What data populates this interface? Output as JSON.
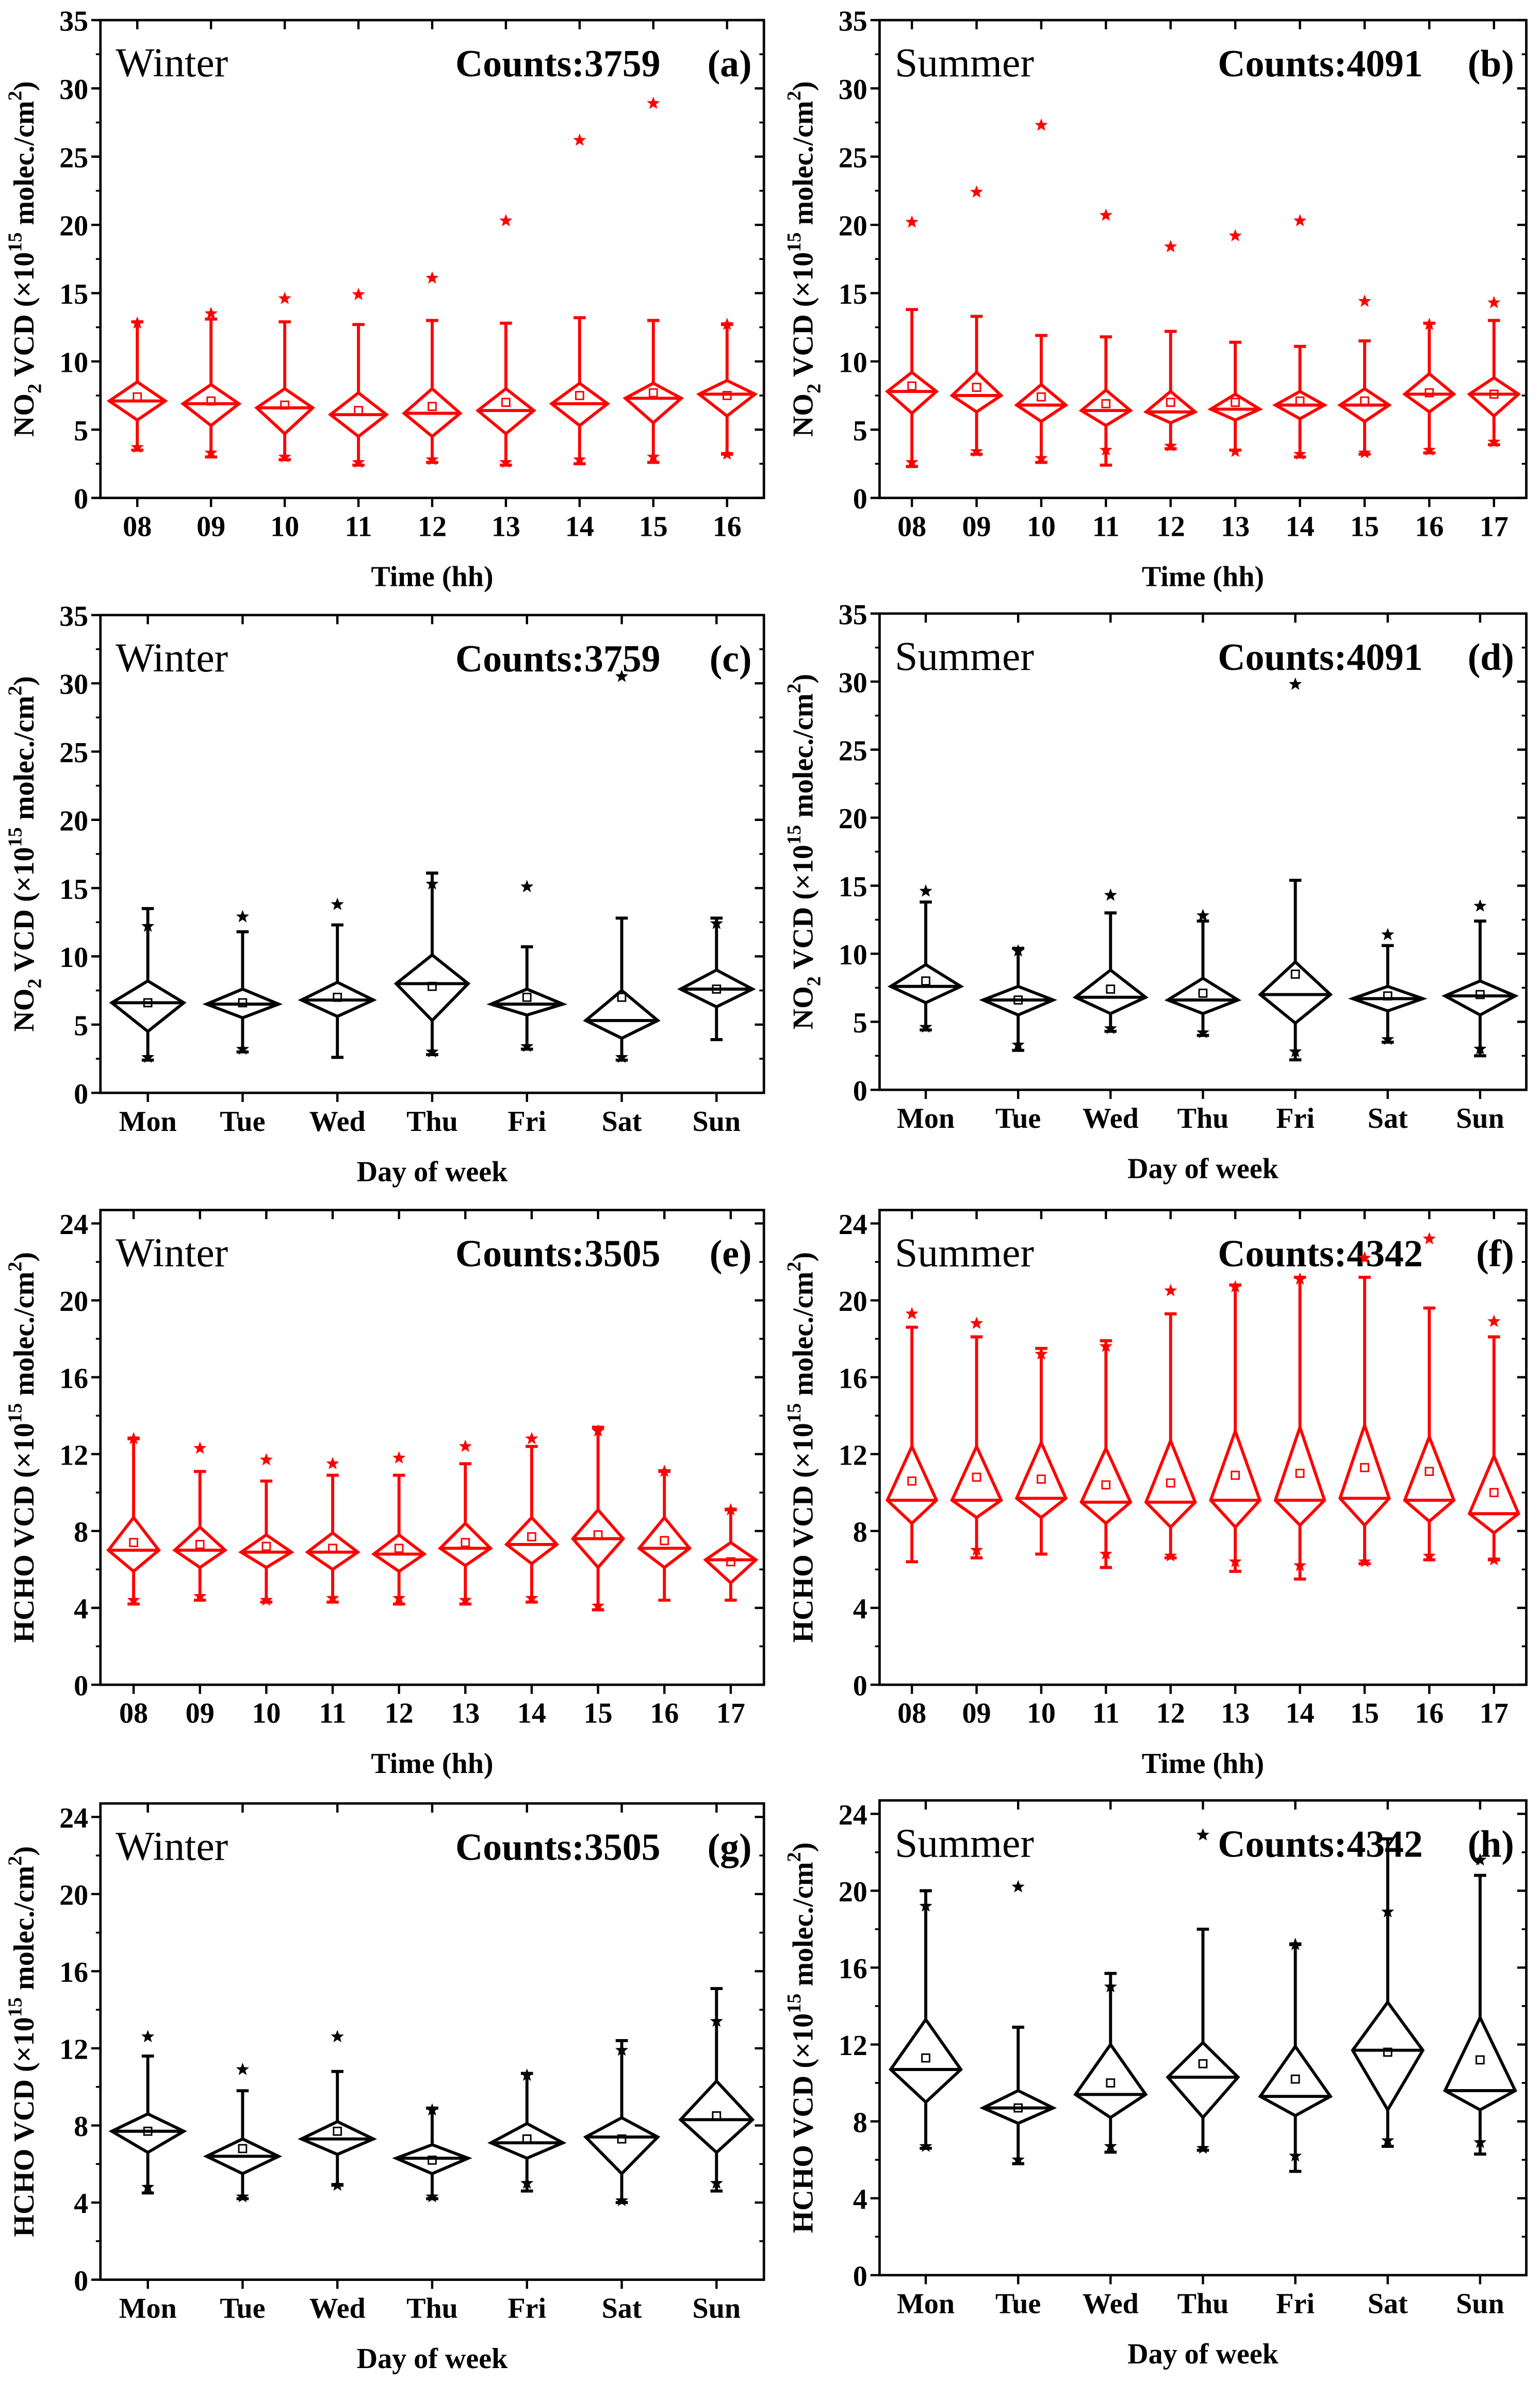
{
  "axis_text": {
    "no2_ylabel": [
      "NO",
      "2",
      " VCD (×10",
      "15",
      " molec./cm",
      "2",
      ")"
    ],
    "hcho_ylabel": [
      "HCHO VCD (×10",
      "15",
      " molec./cm",
      "2",
      ")"
    ]
  },
  "colors": {
    "red": "#ff0000",
    "black": "#000000"
  },
  "chart_data": [
    {
      "type": "box",
      "panel": "(a)",
      "season": "Winter",
      "counts": "Counts:3759",
      "ylabel_key": "no2_ylabel",
      "xlabel": "Time (hh)",
      "color": "#ff0000",
      "ylim": [
        0,
        35
      ],
      "yticks": [
        0,
        5,
        10,
        15,
        20,
        25,
        30,
        35
      ],
      "categories": [
        "08",
        "09",
        "10",
        "11",
        "12",
        "13",
        "14",
        "15",
        "16"
      ],
      "boxes": [
        {
          "median": 7.1,
          "q1": 5.7,
          "q3": 8.5,
          "low": 3.5,
          "high": 12.9,
          "mean": 7.4,
          "outliers": [
            12.8,
            3.7
          ]
        },
        {
          "median": 6.9,
          "q1": 5.3,
          "q3": 8.3,
          "low": 3.0,
          "high": 13.1,
          "mean": 7.1,
          "outliers": [
            13.5,
            3.3
          ]
        },
        {
          "median": 6.6,
          "q1": 4.7,
          "q3": 8.0,
          "low": 2.8,
          "high": 12.9,
          "mean": 6.8,
          "outliers": [
            14.6,
            3.0
          ]
        },
        {
          "median": 6.1,
          "q1": 4.5,
          "q3": 7.7,
          "low": 2.4,
          "high": 12.7,
          "mean": 6.4,
          "outliers": [
            14.9,
            2.6
          ]
        },
        {
          "median": 6.2,
          "q1": 4.5,
          "q3": 8.0,
          "low": 2.6,
          "high": 13.0,
          "mean": 6.7,
          "outliers": [
            16.1,
            2.8
          ]
        },
        {
          "median": 6.4,
          "q1": 4.7,
          "q3": 8.0,
          "low": 2.4,
          "high": 12.8,
          "mean": 7.0,
          "outliers": [
            20.3,
            2.6
          ]
        },
        {
          "median": 6.9,
          "q1": 5.3,
          "q3": 8.4,
          "low": 2.5,
          "high": 13.2,
          "mean": 7.5,
          "outliers": [
            26.2,
            2.8
          ]
        },
        {
          "median": 7.3,
          "q1": 5.5,
          "q3": 8.4,
          "low": 2.6,
          "high": 13.0,
          "mean": 7.7,
          "outliers": [
            28.9,
            3.0
          ]
        },
        {
          "median": 7.6,
          "q1": 6.0,
          "q3": 8.6,
          "low": 3.2,
          "high": 12.7,
          "mean": 7.5,
          "outliers": [
            12.7,
            3.2
          ]
        }
      ]
    },
    {
      "type": "box",
      "panel": "(b)",
      "season": "Summer",
      "counts": "Counts:4091",
      "ylabel_key": "no2_ylabel",
      "xlabel": "Time (hh)",
      "color": "#ff0000",
      "ylim": [
        0,
        35
      ],
      "yticks": [
        0,
        5,
        10,
        15,
        20,
        25,
        30,
        35
      ],
      "categories": [
        "08",
        "09",
        "10",
        "11",
        "12",
        "13",
        "14",
        "15",
        "16",
        "17"
      ],
      "boxes": [
        {
          "median": 7.8,
          "q1": 6.2,
          "q3": 9.2,
          "low": 2.3,
          "high": 13.8,
          "mean": 8.2,
          "outliers": [
            20.2,
            2.6
          ]
        },
        {
          "median": 7.5,
          "q1": 6.3,
          "q3": 9.2,
          "low": 3.2,
          "high": 13.3,
          "mean": 8.1,
          "outliers": [
            22.4,
            3.4
          ]
        },
        {
          "median": 6.8,
          "q1": 5.6,
          "q3": 8.3,
          "low": 2.6,
          "high": 11.9,
          "mean": 7.4,
          "outliers": [
            27.3,
            2.9
          ]
        },
        {
          "median": 6.4,
          "q1": 5.3,
          "q3": 7.9,
          "low": 2.4,
          "high": 11.8,
          "mean": 6.9,
          "outliers": [
            20.7,
            3.5
          ]
        },
        {
          "median": 6.3,
          "q1": 5.5,
          "q3": 7.8,
          "low": 3.6,
          "high": 12.2,
          "mean": 7.0,
          "outliers": [
            18.4,
            3.8
          ]
        },
        {
          "median": 6.5,
          "q1": 5.7,
          "q3": 7.6,
          "low": 3.5,
          "high": 11.4,
          "mean": 7.0,
          "outliers": [
            19.2,
            3.4
          ]
        },
        {
          "median": 6.8,
          "q1": 5.8,
          "q3": 7.8,
          "low": 3.0,
          "high": 11.1,
          "mean": 7.1,
          "outliers": [
            20.3,
            3.2
          ]
        },
        {
          "median": 6.8,
          "q1": 5.6,
          "q3": 8.0,
          "low": 3.2,
          "high": 11.5,
          "mean": 7.1,
          "outliers": [
            14.4,
            3.3
          ]
        },
        {
          "median": 7.6,
          "q1": 6.3,
          "q3": 9.1,
          "low": 3.3,
          "high": 12.8,
          "mean": 7.7,
          "outliers": [
            12.7,
            3.5
          ]
        },
        {
          "median": 7.6,
          "q1": 6.0,
          "q3": 8.8,
          "low": 3.9,
          "high": 13.0,
          "mean": 7.6,
          "outliers": [
            14.3,
            4.1
          ]
        }
      ]
    },
    {
      "type": "box",
      "panel": "(c)",
      "season": "Winter",
      "counts": "Counts:3759",
      "ylabel_key": "no2_ylabel",
      "xlabel": "Day of week",
      "color": "#000000",
      "ylim": [
        0,
        35
      ],
      "yticks": [
        0,
        5,
        10,
        15,
        20,
        25,
        30,
        35
      ],
      "categories": [
        "Mon",
        "Tue",
        "Wed",
        "Thu",
        "Fri",
        "Sat",
        "Sun"
      ],
      "boxes": [
        {
          "median": 6.6,
          "q1": 4.5,
          "q3": 8.2,
          "low": 2.4,
          "high": 13.5,
          "mean": 6.6,
          "outliers": [
            12.2,
            2.6
          ]
        },
        {
          "median": 6.5,
          "q1": 5.5,
          "q3": 7.6,
          "low": 3.0,
          "high": 11.8,
          "mean": 6.6,
          "outliers": [
            12.9,
            3.2
          ]
        },
        {
          "median": 6.8,
          "q1": 5.6,
          "q3": 8.1,
          "low": 2.6,
          "high": 12.3,
          "mean": 7.0,
          "outliers": [
            13.8
          ]
        },
        {
          "median": 8.0,
          "q1": 5.3,
          "q3": 10.1,
          "low": 2.8,
          "high": 16.1,
          "mean": 7.8,
          "outliers": [
            15.3,
            3.0
          ]
        },
        {
          "median": 6.5,
          "q1": 5.7,
          "q3": 7.6,
          "low": 3.2,
          "high": 10.7,
          "mean": 7.0,
          "outliers": [
            15.1,
            3.4
          ]
        },
        {
          "median": 5.3,
          "q1": 4.0,
          "q3": 7.5,
          "low": 2.4,
          "high": 12.8,
          "mean": 7.0,
          "outliers": [
            30.5,
            2.6
          ]
        },
        {
          "median": 7.6,
          "q1": 6.3,
          "q3": 9.0,
          "low": 3.9,
          "high": 12.8,
          "mean": 7.6,
          "outliers": [
            12.4
          ]
        }
      ]
    },
    {
      "type": "box",
      "panel": "(d)",
      "season": "Summer",
      "counts": "Counts:4091",
      "ylabel_key": "no2_ylabel",
      "xlabel": "Day of week",
      "color": "#000000",
      "ylim": [
        0,
        35
      ],
      "yticks": [
        0,
        5,
        10,
        15,
        20,
        25,
        30,
        35
      ],
      "categories": [
        "Mon",
        "Tue",
        "Wed",
        "Thu",
        "Fri",
        "Sat",
        "Sun"
      ],
      "boxes": [
        {
          "median": 7.6,
          "q1": 6.4,
          "q3": 9.2,
          "low": 4.4,
          "high": 13.8,
          "mean": 8.0,
          "outliers": [
            14.6,
            4.6
          ]
        },
        {
          "median": 6.6,
          "q1": 5.5,
          "q3": 7.6,
          "low": 2.9,
          "high": 10.4,
          "mean": 6.6,
          "outliers": [
            10.2,
            3.3
          ]
        },
        {
          "median": 6.8,
          "q1": 5.6,
          "q3": 8.8,
          "low": 4.3,
          "high": 13.0,
          "mean": 7.4,
          "outliers": [
            14.3,
            4.5
          ]
        },
        {
          "median": 6.6,
          "q1": 5.6,
          "q3": 8.2,
          "low": 4.0,
          "high": 12.4,
          "mean": 7.1,
          "outliers": [
            12.8,
            4.2
          ]
        },
        {
          "median": 7.0,
          "q1": 4.9,
          "q3": 9.4,
          "low": 2.2,
          "high": 15.4,
          "mean": 8.5,
          "outliers": [
            29.8,
            2.8
          ]
        },
        {
          "median": 6.7,
          "q1": 5.8,
          "q3": 7.6,
          "low": 3.5,
          "high": 10.6,
          "mean": 6.9,
          "outliers": [
            11.4,
            3.7
          ]
        },
        {
          "median": 6.9,
          "q1": 5.5,
          "q3": 8.0,
          "low": 2.5,
          "high": 12.4,
          "mean": 7.0,
          "outliers": [
            13.5,
            3.0
          ]
        }
      ]
    },
    {
      "type": "box",
      "panel": "(e)",
      "season": "Winter",
      "counts": "Counts:3505",
      "ylabel_key": "hcho_ylabel",
      "xlabel": "Time (hh)",
      "color": "#ff0000",
      "ylim": [
        0,
        24.7
      ],
      "yticks": [
        0,
        4,
        8,
        12,
        16,
        20,
        24
      ],
      "categories": [
        "08",
        "09",
        "10",
        "11",
        "12",
        "13",
        "14",
        "15",
        "16",
        "17"
      ],
      "boxes": [
        {
          "median": 7.0,
          "q1": 5.9,
          "q3": 8.7,
          "low": 4.2,
          "high": 12.8,
          "mean": 7.4,
          "outliers": [
            12.8,
            4.4
          ]
        },
        {
          "median": 7.0,
          "q1": 6.1,
          "q3": 8.2,
          "low": 4.4,
          "high": 11.1,
          "mean": 7.3,
          "outliers": [
            12.3,
            4.6
          ]
        },
        {
          "median": 6.9,
          "q1": 6.1,
          "q3": 7.8,
          "low": 4.3,
          "high": 10.6,
          "mean": 7.2,
          "outliers": [
            11.7,
            4.4
          ]
        },
        {
          "median": 6.9,
          "q1": 6.0,
          "q3": 7.9,
          "low": 4.3,
          "high": 10.9,
          "mean": 7.1,
          "outliers": [
            11.5,
            4.5
          ]
        },
        {
          "median": 6.8,
          "q1": 5.9,
          "q3": 7.8,
          "low": 4.2,
          "high": 10.9,
          "mean": 7.1,
          "outliers": [
            11.8,
            4.5
          ]
        },
        {
          "median": 7.1,
          "q1": 6.2,
          "q3": 8.4,
          "low": 4.2,
          "high": 11.5,
          "mean": 7.4,
          "outliers": [
            12.4,
            4.4
          ]
        },
        {
          "median": 7.3,
          "q1": 6.3,
          "q3": 8.7,
          "low": 4.3,
          "high": 12.4,
          "mean": 7.7,
          "outliers": [
            12.8,
            4.5
          ]
        },
        {
          "median": 7.6,
          "q1": 6.1,
          "q3": 9.1,
          "low": 3.9,
          "high": 13.4,
          "mean": 7.8,
          "outliers": [
            13.2,
            4.1
          ]
        },
        {
          "median": 7.1,
          "q1": 6.1,
          "q3": 8.7,
          "low": 4.4,
          "high": 11.1,
          "mean": 7.5,
          "outliers": [
            11.1
          ]
        },
        {
          "median": 6.5,
          "q1": 5.3,
          "q3": 7.4,
          "low": 4.4,
          "high": 9.1,
          "mean": 6.4,
          "outliers": [
            9.1
          ]
        }
      ]
    },
    {
      "type": "box",
      "panel": "(f)",
      "season": "Summer",
      "counts": "Counts:4342",
      "ylabel_key": "hcho_ylabel",
      "xlabel": "Time (hh)",
      "color": "#ff0000",
      "ylim": [
        0,
        24.7
      ],
      "yticks": [
        0,
        4,
        8,
        12,
        16,
        20,
        24
      ],
      "categories": [
        "08",
        "09",
        "10",
        "11",
        "12",
        "13",
        "14",
        "15",
        "16",
        "17"
      ],
      "boxes": [
        {
          "median": 9.6,
          "q1": 8.4,
          "q3": 12.4,
          "low": 6.4,
          "high": 18.6,
          "mean": 10.6,
          "outliers": [
            19.3
          ]
        },
        {
          "median": 9.6,
          "q1": 8.7,
          "q3": 12.4,
          "low": 6.6,
          "high": 18.1,
          "mean": 10.8,
          "outliers": [
            18.8,
            7.0
          ]
        },
        {
          "median": 9.7,
          "q1": 8.7,
          "q3": 12.6,
          "low": 6.8,
          "high": 17.5,
          "mean": 10.7,
          "outliers": [
            17.2
          ]
        },
        {
          "median": 9.5,
          "q1": 8.4,
          "q3": 12.3,
          "low": 6.1,
          "high": 17.9,
          "mean": 10.4,
          "outliers": [
            17.6,
            6.8
          ]
        },
        {
          "median": 9.5,
          "q1": 8.2,
          "q3": 12.7,
          "low": 6.6,
          "high": 19.3,
          "mean": 10.5,
          "outliers": [
            20.5,
            6.7
          ]
        },
        {
          "median": 9.6,
          "q1": 8.2,
          "q3": 13.2,
          "low": 5.9,
          "high": 20.8,
          "mean": 10.9,
          "outliers": [
            20.7,
            6.4
          ]
        },
        {
          "median": 9.6,
          "q1": 8.3,
          "q3": 13.4,
          "low": 5.5,
          "high": 21.2,
          "mean": 11.0,
          "outliers": [
            21.1,
            6.2
          ]
        },
        {
          "median": 9.7,
          "q1": 8.3,
          "q3": 13.5,
          "low": 6.3,
          "high": 21.2,
          "mean": 11.3,
          "outliers": [
            22.2,
            6.4
          ]
        },
        {
          "median": 9.6,
          "q1": 8.5,
          "q3": 12.9,
          "low": 6.5,
          "high": 19.6,
          "mean": 11.1,
          "outliers": [
            23.2,
            6.7
          ]
        },
        {
          "median": 8.9,
          "q1": 7.9,
          "q3": 11.9,
          "low": 6.5,
          "high": 18.1,
          "mean": 10.0,
          "outliers": [
            18.9,
            6.5
          ]
        }
      ]
    },
    {
      "type": "box",
      "panel": "(g)",
      "season": "Winter",
      "counts": "Counts:3505",
      "ylabel_key": "hcho_ylabel",
      "xlabel": "Day of week",
      "color": "#000000",
      "ylim": [
        0,
        24.7
      ],
      "yticks": [
        0,
        4,
        8,
        12,
        16,
        20,
        24
      ],
      "categories": [
        "Mon",
        "Tue",
        "Wed",
        "Thu",
        "Fri",
        "Sat",
        "Sun"
      ],
      "boxes": [
        {
          "median": 7.7,
          "q1": 6.6,
          "q3": 8.6,
          "low": 4.5,
          "high": 11.6,
          "mean": 7.7,
          "outliers": [
            12.6,
            4.8
          ]
        },
        {
          "median": 6.4,
          "q1": 5.5,
          "q3": 7.3,
          "low": 4.2,
          "high": 9.8,
          "mean": 6.8,
          "outliers": [
            10.9,
            4.3
          ]
        },
        {
          "median": 7.3,
          "q1": 6.5,
          "q3": 8.2,
          "low": 4.9,
          "high": 10.8,
          "mean": 7.7,
          "outliers": [
            12.6,
            4.9
          ]
        },
        {
          "median": 6.3,
          "q1": 5.5,
          "q3": 7.0,
          "low": 4.2,
          "high": 8.9,
          "mean": 6.2,
          "outliers": [
            8.8,
            4.3
          ]
        },
        {
          "median": 7.1,
          "q1": 6.3,
          "q3": 8.1,
          "low": 4.6,
          "high": 10.7,
          "mean": 7.3,
          "outliers": [
            10.6,
            5.0
          ]
        },
        {
          "median": 7.4,
          "q1": 5.5,
          "q3": 8.4,
          "low": 4.0,
          "high": 12.4,
          "mean": 7.3,
          "outliers": [
            11.9,
            4.1
          ]
        },
        {
          "median": 8.3,
          "q1": 6.6,
          "q3": 10.3,
          "low": 4.6,
          "high": 15.1,
          "mean": 8.5,
          "outliers": [
            13.4,
            5.0
          ]
        }
      ]
    },
    {
      "type": "box",
      "panel": "(h)",
      "season": "Summer",
      "counts": "Counts:4342",
      "ylabel_key": "hcho_ylabel",
      "xlabel": "Day of week",
      "color": "#000000",
      "ylim": [
        0,
        24.7
      ],
      "yticks": [
        0,
        4,
        8,
        12,
        16,
        20,
        24
      ],
      "categories": [
        "Mon",
        "Tue",
        "Wed",
        "Thu",
        "Fri",
        "Sat",
        "Sun"
      ],
      "boxes": [
        {
          "median": 10.7,
          "q1": 9.0,
          "q3": 13.3,
          "low": 6.6,
          "high": 20.0,
          "mean": 11.3,
          "outliers": [
            19.2,
            6.7
          ]
        },
        {
          "median": 8.7,
          "q1": 7.9,
          "q3": 9.6,
          "low": 5.8,
          "high": 12.9,
          "mean": 8.7,
          "outliers": [
            20.2,
            6.0
          ]
        },
        {
          "median": 9.4,
          "q1": 8.2,
          "q3": 12.0,
          "low": 6.4,
          "high": 15.7,
          "mean": 10.0,
          "outliers": [
            15.0,
            6.7
          ]
        },
        {
          "median": 10.3,
          "q1": 8.2,
          "q3": 12.1,
          "low": 6.5,
          "high": 18.0,
          "mean": 11.0,
          "outliers": [
            22.9,
            6.6
          ]
        },
        {
          "median": 9.3,
          "q1": 8.3,
          "q3": 11.9,
          "low": 5.4,
          "high": 17.2,
          "mean": 10.2,
          "outliers": [
            17.2,
            6.2
          ]
        },
        {
          "median": 11.7,
          "q1": 8.6,
          "q3": 14.2,
          "low": 6.7,
          "high": 22.7,
          "mean": 11.6,
          "outliers": [
            18.9,
            7.0
          ]
        },
        {
          "median": 9.6,
          "q1": 8.6,
          "q3": 13.4,
          "low": 6.3,
          "high": 20.8,
          "mean": 11.2,
          "outliers": [
            21.6,
            6.9
          ]
        }
      ]
    }
  ]
}
